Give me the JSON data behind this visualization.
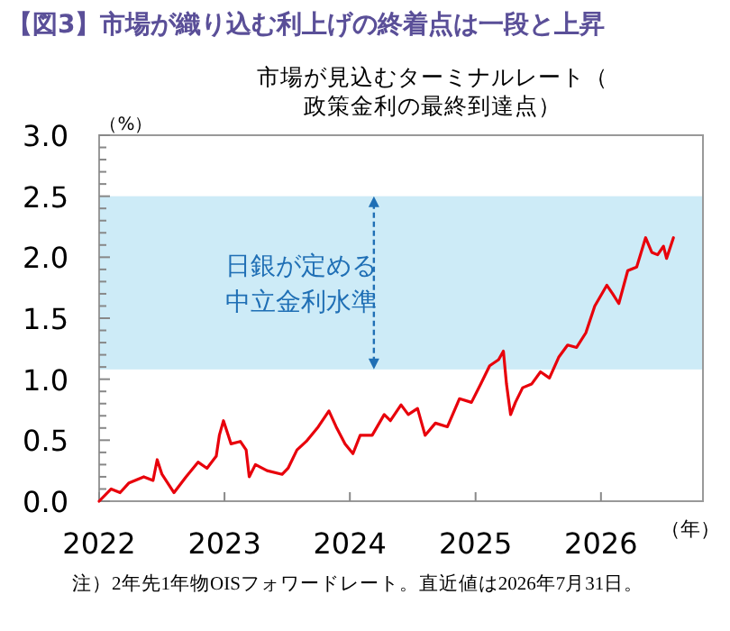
{
  "chart_data": {
    "type": "line",
    "title": "【図3】市場が織り込む利上げの終着点は一段と上昇",
    "subtitle": "市場が見込むターミナルレート（政策金利の最終到達点）",
    "ylabel": "（%）",
    "xlabel": "（年）",
    "x": [
      "2022-01-01",
      "2022-02-05",
      "2022-03-03",
      "2022-03-29",
      "2022-05-11",
      "2022-06-07",
      "2022-06-19",
      "2022-07-03",
      "2022-08-07",
      "2022-09-11",
      "2022-10-16",
      "2022-11-11",
      "2022-12-08",
      "2022-12-17",
      "2022-12-29",
      "2023-01-12",
      "2023-01-20",
      "2023-02-16",
      "2023-03-05",
      "2023-03-14",
      "2023-04-01",
      "2023-05-05",
      "2023-06-18",
      "2023-07-05",
      "2023-07-31",
      "2023-08-27",
      "2023-10-01",
      "2023-11-01",
      "2023-11-22",
      "2023-12-18",
      "2024-01-10",
      "2024-01-31",
      "2024-03-06",
      "2024-04-10",
      "2024-04-28",
      "2024-05-29",
      "2024-06-19",
      "2024-07-16",
      "2024-08-07",
      "2024-09-06",
      "2024-10-11",
      "2024-11-15",
      "2024-12-20",
      "2025-01-16",
      "2025-02-11",
      "2025-03-09",
      "2025-03-23",
      "2025-04-01",
      "2025-04-13",
      "2025-04-27",
      "2025-05-18",
      "2025-06-13",
      "2025-07-09",
      "2025-08-04",
      "2025-08-31",
      "2025-09-26",
      "2025-10-22",
      "2025-11-18",
      "2025-12-14",
      "2026-01-18",
      "2026-02-04",
      "2026-02-22",
      "2026-03-20",
      "2026-04-15",
      "2026-05-11",
      "2026-05-29",
      "2026-06-15",
      "2026-07-02",
      "2026-07-11",
      "2026-07-31"
    ],
    "series": [
      {
        "color": "#e8000b",
        "values": [
          0.0,
          0.1,
          0.07,
          0.15,
          0.2,
          0.17,
          0.34,
          0.22,
          0.07,
          0.2,
          0.32,
          0.27,
          0.37,
          0.54,
          0.66,
          0.54,
          0.47,
          0.49,
          0.42,
          0.2,
          0.3,
          0.25,
          0.22,
          0.27,
          0.42,
          0.49,
          0.61,
          0.74,
          0.61,
          0.47,
          0.39,
          0.54,
          0.54,
          0.71,
          0.66,
          0.79,
          0.71,
          0.76,
          0.54,
          0.64,
          0.61,
          0.84,
          0.81,
          0.96,
          1.11,
          1.16,
          1.23,
          0.96,
          0.71,
          0.81,
          0.93,
          0.96,
          1.06,
          1.01,
          1.18,
          1.28,
          1.26,
          1.38,
          1.6,
          1.77,
          1.7,
          1.62,
          1.89,
          1.92,
          2.16,
          2.04,
          2.02,
          2.09,
          1.99,
          2.16
        ]
      }
    ],
    "xlim": [
      "2022-01-01",
      "2026-10-25"
    ],
    "xticks": [
      {
        "value": "2022-01-01",
        "label": "2022"
      },
      {
        "value": "2023-01-01",
        "label": "2023"
      },
      {
        "value": "2024-01-01",
        "label": "2024"
      },
      {
        "value": "2025-01-01",
        "label": "2025"
      },
      {
        "value": "2026-01-01",
        "label": "2026"
      }
    ],
    "ylim": [
      0,
      3
    ],
    "yticks": [
      {
        "value": 0,
        "label": "0.0"
      },
      {
        "value": 0.1,
        "label": null
      },
      {
        "value": 0.2,
        "label": null
      },
      {
        "value": 0.3,
        "label": null
      },
      {
        "value": 0.4,
        "label": null
      },
      {
        "value": 0.5,
        "label": "0.5"
      },
      {
        "value": 0.6,
        "label": null
      },
      {
        "value": 0.7,
        "label": null
      },
      {
        "value": 0.8,
        "label": null
      },
      {
        "value": 0.9,
        "label": null
      },
      {
        "value": 1.0,
        "label": "1.0"
      },
      {
        "value": 1.1,
        "label": null
      },
      {
        "value": 1.2,
        "label": null
      },
      {
        "value": 1.3,
        "label": null
      },
      {
        "value": 1.4,
        "label": null
      },
      {
        "value": 1.5,
        "label": "1.5"
      },
      {
        "value": 1.6,
        "label": null
      },
      {
        "value": 1.7,
        "label": null
      },
      {
        "value": 1.8,
        "label": null
      },
      {
        "value": 1.9,
        "label": null
      },
      {
        "value": 2.0,
        "label": "2.0"
      },
      {
        "value": 2.1,
        "label": null
      },
      {
        "value": 2.2,
        "label": null
      },
      {
        "value": 2.3,
        "label": null
      },
      {
        "value": 2.4,
        "label": null
      },
      {
        "value": 2.5,
        "label": "2.5"
      },
      {
        "value": 2.6,
        "label": null
      },
      {
        "value": 2.7,
        "label": null
      },
      {
        "value": 2.8,
        "label": null
      },
      {
        "value": 2.9,
        "label": null
      },
      {
        "value": 3.0,
        "label": "3.0"
      }
    ],
    "bands": [
      {
        "axis": "y",
        "from": 1.08,
        "to": 2.5,
        "label": "日銀が定める中立金利水準",
        "color": "#cdebf7"
      }
    ],
    "annotations": [
      "注）2年先1年物OISフォワードレート。直近値は2026年7月31日。"
    ],
    "marker": "none",
    "line_style": "solid",
    "grid": false
  }
}
